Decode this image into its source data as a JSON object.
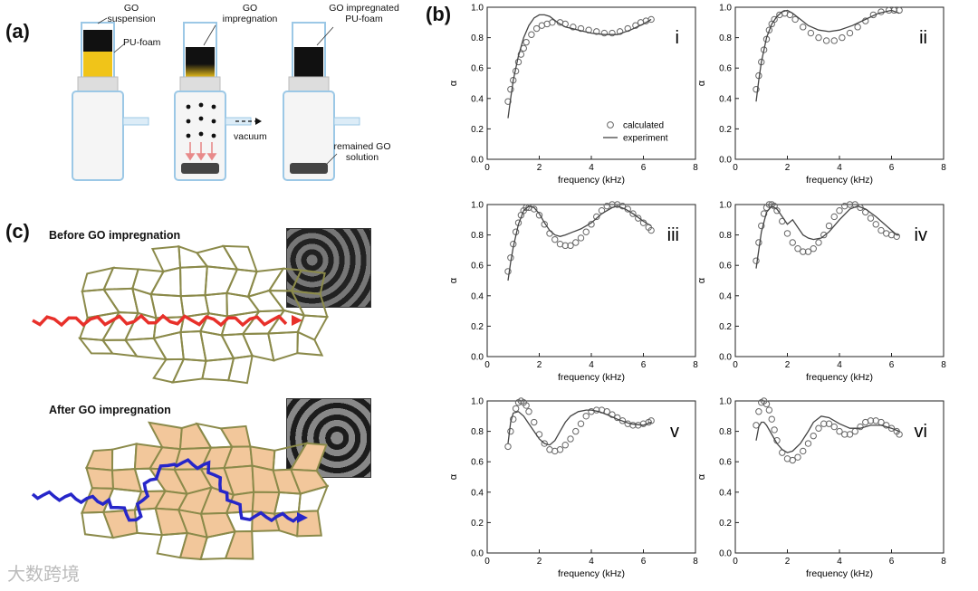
{
  "panel_labels": {
    "a": "(a)",
    "b": "(b)",
    "c": "(c)"
  },
  "panel_a": {
    "go_suspension": "GO\nsuspension",
    "pu_foam": "PU-foam",
    "go_impregnation": "GO\nimpregnation",
    "go_impregnated": "GO impregnated\nPU-foam",
    "vacuum": "vacuum",
    "remained": "remained GO\nsolution"
  },
  "panel_c": {
    "before": "Before GO impregnation",
    "after": "After GO impregnation"
  },
  "watermark": "大数跨境",
  "colors": {
    "foam_yellow": "#f0c419",
    "go_black": "#111111",
    "cell_outline": "#8b8a4a",
    "cell_fill": "#f2c79b",
    "wave_red": "#e8302a",
    "wave_blue": "#2626c9",
    "arrow_pink": "#e88a8a"
  },
  "chart_data": [
    {
      "type": "line",
      "panel": "i",
      "xlabel": "frequency (kHz)",
      "ylabel": "α",
      "xlim": [
        0,
        8
      ],
      "ylim": [
        0,
        1.0
      ],
      "xticks": [
        0,
        2,
        4,
        6,
        8
      ],
      "yticks": [
        "0.0",
        "0.2",
        "0.4",
        "0.6",
        "0.8",
        "1.0"
      ],
      "legend": [
        "calculated",
        "experiment"
      ],
      "legend_position": "center-right",
      "series": [
        {
          "name": "calculated",
          "marker": "circle",
          "x": [
            0.8,
            0.9,
            1.0,
            1.1,
            1.2,
            1.3,
            1.4,
            1.5,
            1.7,
            1.9,
            2.1,
            2.3,
            2.5,
            2.8,
            3.0,
            3.3,
            3.6,
            3.9,
            4.2,
            4.5,
            4.8,
            5.1,
            5.4,
            5.7,
            5.9,
            6.1,
            6.3
          ],
          "y": [
            0.38,
            0.46,
            0.52,
            0.58,
            0.64,
            0.69,
            0.73,
            0.77,
            0.82,
            0.86,
            0.88,
            0.89,
            0.9,
            0.9,
            0.89,
            0.87,
            0.86,
            0.85,
            0.84,
            0.83,
            0.83,
            0.84,
            0.86,
            0.88,
            0.9,
            0.91,
            0.92
          ]
        },
        {
          "name": "experiment",
          "marker": "line",
          "x": [
            0.8,
            0.9,
            1.0,
            1.2,
            1.4,
            1.6,
            1.8,
            2.0,
            2.2,
            2.4,
            2.7,
            3.0,
            3.5,
            4.0,
            4.5,
            5.0,
            5.5,
            6.0,
            6.3
          ],
          "y": [
            0.27,
            0.4,
            0.52,
            0.68,
            0.8,
            0.88,
            0.93,
            0.95,
            0.95,
            0.94,
            0.9,
            0.87,
            0.85,
            0.83,
            0.82,
            0.82,
            0.85,
            0.89,
            0.92
          ]
        }
      ]
    },
    {
      "type": "line",
      "panel": "ii",
      "xlabel": "frequency (kHz)",
      "ylabel": "α",
      "xlim": [
        0,
        8
      ],
      "ylim": [
        0,
        1.0
      ],
      "xticks": [
        0,
        2,
        4,
        6,
        8
      ],
      "yticks": [
        "0.0",
        "0.2",
        "0.4",
        "0.6",
        "0.8",
        "1.0"
      ],
      "series": [
        {
          "name": "calculated",
          "marker": "circle",
          "x": [
            0.8,
            0.9,
            1.0,
            1.1,
            1.2,
            1.3,
            1.4,
            1.5,
            1.7,
            1.9,
            2.1,
            2.3,
            2.6,
            2.9,
            3.2,
            3.5,
            3.8,
            4.1,
            4.4,
            4.7,
            5.0,
            5.3,
            5.6,
            5.9,
            6.1,
            6.3
          ],
          "y": [
            0.46,
            0.55,
            0.64,
            0.72,
            0.79,
            0.85,
            0.89,
            0.92,
            0.95,
            0.96,
            0.95,
            0.92,
            0.87,
            0.83,
            0.8,
            0.78,
            0.78,
            0.8,
            0.83,
            0.87,
            0.91,
            0.95,
            0.97,
            0.98,
            0.98,
            0.98
          ]
        },
        {
          "name": "experiment",
          "marker": "line",
          "x": [
            0.8,
            0.9,
            1.0,
            1.2,
            1.4,
            1.6,
            1.8,
            2.0,
            2.2,
            2.5,
            2.8,
            3.2,
            3.6,
            4.0,
            4.5,
            5.0,
            5.5,
            6.0,
            6.3
          ],
          "y": [
            0.38,
            0.52,
            0.64,
            0.8,
            0.89,
            0.94,
            0.97,
            0.98,
            0.96,
            0.92,
            0.88,
            0.85,
            0.84,
            0.85,
            0.88,
            0.92,
            0.96,
            0.98,
            0.96
          ]
        }
      ]
    },
    {
      "type": "line",
      "panel": "iii",
      "xlabel": "frequency (kHz)",
      "ylabel": "α",
      "xlim": [
        0,
        8
      ],
      "ylim": [
        0,
        1.0
      ],
      "xticks": [
        0,
        2,
        4,
        6,
        8
      ],
      "yticks": [
        "0.0",
        "0.2",
        "0.4",
        "0.6",
        "0.8",
        "1.0"
      ],
      "series": [
        {
          "name": "calculated",
          "marker": "circle",
          "x": [
            0.8,
            0.9,
            1.0,
            1.1,
            1.2,
            1.3,
            1.4,
            1.5,
            1.6,
            1.8,
            2.0,
            2.2,
            2.4,
            2.6,
            2.8,
            3.0,
            3.2,
            3.4,
            3.6,
            3.8,
            4.0,
            4.2,
            4.4,
            4.6,
            4.8,
            5.0,
            5.2,
            5.4,
            5.6,
            5.8,
            6.0,
            6.2,
            6.3
          ],
          "y": [
            0.56,
            0.65,
            0.74,
            0.82,
            0.88,
            0.93,
            0.96,
            0.98,
            0.98,
            0.97,
            0.93,
            0.87,
            0.81,
            0.77,
            0.74,
            0.73,
            0.73,
            0.75,
            0.78,
            0.82,
            0.87,
            0.92,
            0.96,
            0.99,
            1.0,
            1.0,
            0.99,
            0.97,
            0.94,
            0.91,
            0.88,
            0.85,
            0.83
          ]
        },
        {
          "name": "experiment",
          "marker": "line",
          "x": [
            0.8,
            0.9,
            1.0,
            1.2,
            1.4,
            1.6,
            1.8,
            2.0,
            2.2,
            2.4,
            2.6,
            2.8,
            3.0,
            3.3,
            3.6,
            4.0,
            4.4,
            4.8,
            5.0,
            5.3,
            5.6,
            6.0,
            6.3
          ],
          "y": [
            0.5,
            0.62,
            0.72,
            0.87,
            0.96,
            0.99,
            0.98,
            0.94,
            0.88,
            0.83,
            0.8,
            0.79,
            0.8,
            0.82,
            0.84,
            0.88,
            0.94,
            0.98,
            0.99,
            0.97,
            0.94,
            0.89,
            0.86
          ]
        }
      ]
    },
    {
      "type": "line",
      "panel": "iv",
      "xlabel": "frequency (kHz)",
      "ylabel": "α",
      "xlim": [
        0,
        8
      ],
      "ylim": [
        0,
        1.0
      ],
      "xticks": [
        0,
        2,
        4,
        6,
        8
      ],
      "yticks": [
        "0.0",
        "0.2",
        "0.4",
        "0.6",
        "0.8",
        "1.0"
      ],
      "series": [
        {
          "name": "calculated",
          "marker": "circle",
          "x": [
            0.8,
            0.9,
            1.0,
            1.1,
            1.2,
            1.3,
            1.4,
            1.5,
            1.6,
            1.8,
            2.0,
            2.2,
            2.4,
            2.6,
            2.8,
            3.0,
            3.2,
            3.4,
            3.6,
            3.8,
            4.0,
            4.2,
            4.4,
            4.6,
            4.8,
            5.0,
            5.2,
            5.4,
            5.6,
            5.8,
            6.0,
            6.2
          ],
          "y": [
            0.63,
            0.75,
            0.86,
            0.94,
            0.98,
            1.0,
            1.0,
            0.99,
            0.96,
            0.89,
            0.81,
            0.75,
            0.71,
            0.69,
            0.69,
            0.71,
            0.75,
            0.8,
            0.86,
            0.92,
            0.96,
            0.99,
            1.0,
            1.0,
            0.98,
            0.95,
            0.91,
            0.87,
            0.83,
            0.81,
            0.8,
            0.79
          ]
        },
        {
          "name": "experiment",
          "marker": "line",
          "x": [
            0.8,
            0.9,
            1.0,
            1.2,
            1.4,
            1.6,
            1.8,
            2.0,
            2.2,
            2.4,
            2.6,
            2.8,
            3.0,
            3.3,
            3.6,
            4.0,
            4.4,
            4.7,
            5.0,
            5.4,
            5.8,
            6.2,
            6.3
          ],
          "y": [
            0.58,
            0.7,
            0.82,
            0.95,
            0.99,
            0.97,
            0.92,
            0.87,
            0.9,
            0.85,
            0.8,
            0.78,
            0.77,
            0.78,
            0.82,
            0.9,
            0.97,
            0.99,
            0.97,
            0.92,
            0.86,
            0.8,
            0.8
          ]
        }
      ]
    },
    {
      "type": "line",
      "panel": "v",
      "xlabel": "frequency (kHz)",
      "ylabel": "α",
      "xlim": [
        0,
        8
      ],
      "ylim": [
        0,
        1.0
      ],
      "xticks": [
        0,
        2,
        4,
        6,
        8
      ],
      "yticks": [
        "0.0",
        "0.2",
        "0.4",
        "0.6",
        "0.8",
        "1.0"
      ],
      "series": [
        {
          "name": "calculated",
          "marker": "circle",
          "x": [
            0.8,
            0.9,
            1.0,
            1.1,
            1.2,
            1.3,
            1.4,
            1.5,
            1.6,
            1.8,
            2.0,
            2.2,
            2.4,
            2.6,
            2.8,
            3.0,
            3.2,
            3.4,
            3.6,
            3.8,
            4.0,
            4.2,
            4.4,
            4.6,
            4.8,
            5.0,
            5.2,
            5.4,
            5.6,
            5.8,
            6.0,
            6.2,
            6.3
          ],
          "y": [
            0.7,
            0.8,
            0.88,
            0.95,
            0.99,
            1.0,
            0.99,
            0.97,
            0.93,
            0.86,
            0.78,
            0.72,
            0.68,
            0.67,
            0.68,
            0.71,
            0.75,
            0.8,
            0.85,
            0.9,
            0.93,
            0.94,
            0.94,
            0.93,
            0.91,
            0.89,
            0.87,
            0.85,
            0.84,
            0.84,
            0.85,
            0.86,
            0.87
          ]
        },
        {
          "name": "experiment",
          "marker": "line",
          "x": [
            0.8,
            0.9,
            1.0,
            1.2,
            1.4,
            1.6,
            1.8,
            2.0,
            2.2,
            2.4,
            2.6,
            2.8,
            3.0,
            3.2,
            3.5,
            3.8,
            4.0,
            4.3,
            4.6,
            5.0,
            5.5,
            6.0,
            6.3
          ],
          "y": [
            0.72,
            0.86,
            0.92,
            0.93,
            0.9,
            0.85,
            0.8,
            0.75,
            0.72,
            0.71,
            0.74,
            0.8,
            0.86,
            0.9,
            0.93,
            0.94,
            0.94,
            0.93,
            0.91,
            0.88,
            0.85,
            0.84,
            0.86
          ]
        }
      ]
    },
    {
      "type": "line",
      "panel": "vi",
      "xlabel": "frequency (kHz)",
      "ylabel": "α",
      "xlim": [
        0,
        8
      ],
      "ylim": [
        0,
        1.0
      ],
      "xticks": [
        0,
        2,
        4,
        6,
        8
      ],
      "yticks": [
        "0.0",
        "0.2",
        "0.4",
        "0.6",
        "0.8",
        "1.0"
      ],
      "series": [
        {
          "name": "calculated",
          "marker": "circle",
          "x": [
            0.8,
            0.9,
            1.0,
            1.1,
            1.2,
            1.3,
            1.4,
            1.5,
            1.6,
            1.8,
            2.0,
            2.2,
            2.4,
            2.6,
            2.8,
            3.0,
            3.2,
            3.4,
            3.6,
            3.8,
            4.0,
            4.2,
            4.4,
            4.6,
            4.8,
            5.0,
            5.2,
            5.4,
            5.6,
            5.8,
            6.0,
            6.2,
            6.3
          ],
          "y": [
            0.84,
            0.93,
            0.99,
            1.0,
            0.98,
            0.94,
            0.88,
            0.81,
            0.74,
            0.66,
            0.62,
            0.61,
            0.63,
            0.67,
            0.72,
            0.77,
            0.82,
            0.85,
            0.85,
            0.83,
            0.8,
            0.78,
            0.78,
            0.8,
            0.83,
            0.86,
            0.87,
            0.87,
            0.86,
            0.84,
            0.82,
            0.8,
            0.78
          ]
        },
        {
          "name": "experiment",
          "marker": "line",
          "x": [
            0.8,
            0.9,
            1.0,
            1.1,
            1.2,
            1.4,
            1.6,
            1.8,
            2.0,
            2.2,
            2.5,
            2.8,
            3.0,
            3.3,
            3.6,
            4.0,
            4.4,
            4.8,
            5.2,
            5.6,
            6.0,
            6.3
          ],
          "y": [
            0.74,
            0.83,
            0.86,
            0.86,
            0.84,
            0.78,
            0.72,
            0.68,
            0.66,
            0.67,
            0.72,
            0.8,
            0.86,
            0.9,
            0.89,
            0.85,
            0.82,
            0.82,
            0.84,
            0.84,
            0.82,
            0.8
          ]
        }
      ]
    }
  ]
}
